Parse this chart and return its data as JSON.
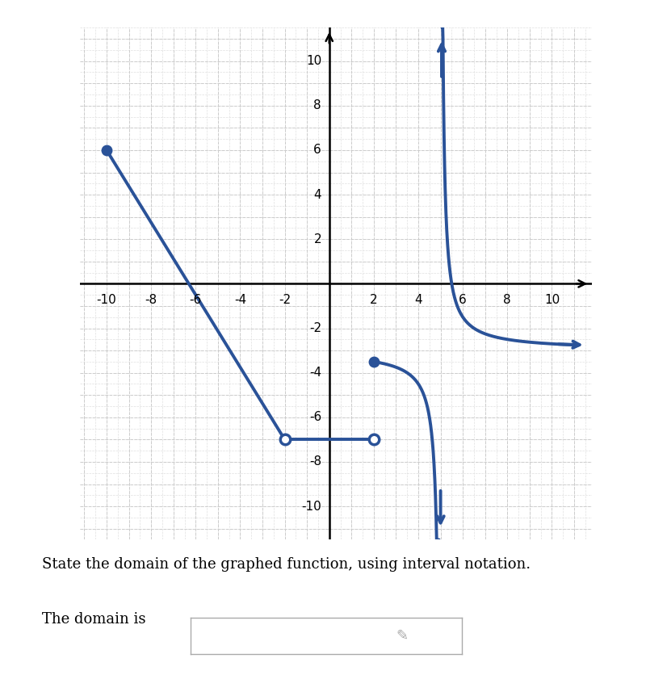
{
  "bg_color": "#ffffff",
  "grid_major_color": "#cccccc",
  "grid_minor_color": "#e0e0e0",
  "line_color": "#2a5298",
  "axis_color": "#000000",
  "xlim": [
    -11.2,
    11.8
  ],
  "ylim": [
    -11.5,
    11.5
  ],
  "xticks": [
    -10,
    -8,
    -6,
    -4,
    -2,
    0,
    2,
    4,
    6,
    8,
    10
  ],
  "yticks": [
    -10,
    -8,
    -6,
    -4,
    -2,
    2,
    4,
    6,
    8,
    10
  ],
  "segment1_x1": -10,
  "segment1_y1": 6,
  "segment1_x2": -6,
  "segment1_y2": 0,
  "segment1_x3": -2,
  "segment1_y3": -7,
  "segment2_x1": -2,
  "segment2_y1": -7,
  "segment2_x2": 2,
  "segment2_y2": -7,
  "dot_filled_x": 2,
  "dot_filled_y": -3.5,
  "asymptote_x": 5,
  "horizontal_asymptote_y": -3.0,
  "curve_a": 1.5,
  "line_width": 2.8,
  "marker_size": 9,
  "font_size_ticks": 11,
  "title_text": "State the domain of the graphed function, using interval notation.",
  "answer_text": "The domain is"
}
